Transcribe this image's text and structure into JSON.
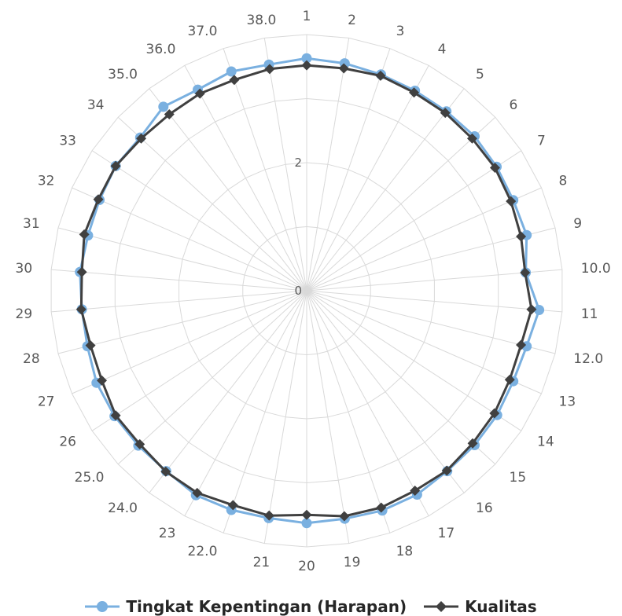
{
  "chart_data": {
    "type": "radar",
    "categories": [
      "1",
      "2",
      "3",
      "4",
      "5",
      "6",
      "7",
      "8",
      "9",
      "10.0",
      "11",
      "12.0",
      "13",
      "14",
      "15",
      "16",
      "17",
      "18",
      "19",
      "20",
      "21",
      "22.0",
      "23",
      "24.0",
      "25.0",
      "26",
      "27",
      "28",
      "29",
      "30",
      "31",
      "32",
      "33",
      "34",
      "35.0",
      "36.0",
      "37.0",
      "38.0"
    ],
    "radial_ticks": [
      "0",
      "2"
    ],
    "radial_range": [
      0,
      4
    ],
    "series": [
      {
        "name": "Tingkat Kepentingan (Harapan)",
        "color": "#7ab0e0",
        "marker": "circle",
        "values": [
          3.63,
          3.6,
          3.57,
          3.55,
          3.55,
          3.56,
          3.54,
          3.52,
          3.54,
          3.43,
          3.64,
          3.54,
          3.52,
          3.55,
          3.56,
          3.57,
          3.62,
          3.63,
          3.61,
          3.63,
          3.6,
          3.62,
          3.63,
          3.57,
          3.57,
          3.58,
          3.58,
          3.53,
          3.52,
          3.55,
          3.52,
          3.53,
          3.56,
          3.53,
          3.64,
          3.57,
          3.62,
          3.58
        ]
      },
      {
        "name": "Kualitas",
        "color": "#404040",
        "marker": "diamond",
        "values": [
          3.52,
          3.52,
          3.55,
          3.52,
          3.52,
          3.51,
          3.51,
          3.48,
          3.45,
          3.42,
          3.52,
          3.45,
          3.46,
          3.5,
          3.52,
          3.56,
          3.55,
          3.58,
          3.57,
          3.5,
          3.56,
          3.54,
          3.59,
          3.58,
          3.54,
          3.56,
          3.49,
          3.48,
          3.53,
          3.52,
          3.58,
          3.55,
          3.56,
          3.51,
          3.49,
          3.5,
          3.48,
          3.51
        ]
      }
    ],
    "legend_position": "bottom",
    "grid": true
  }
}
